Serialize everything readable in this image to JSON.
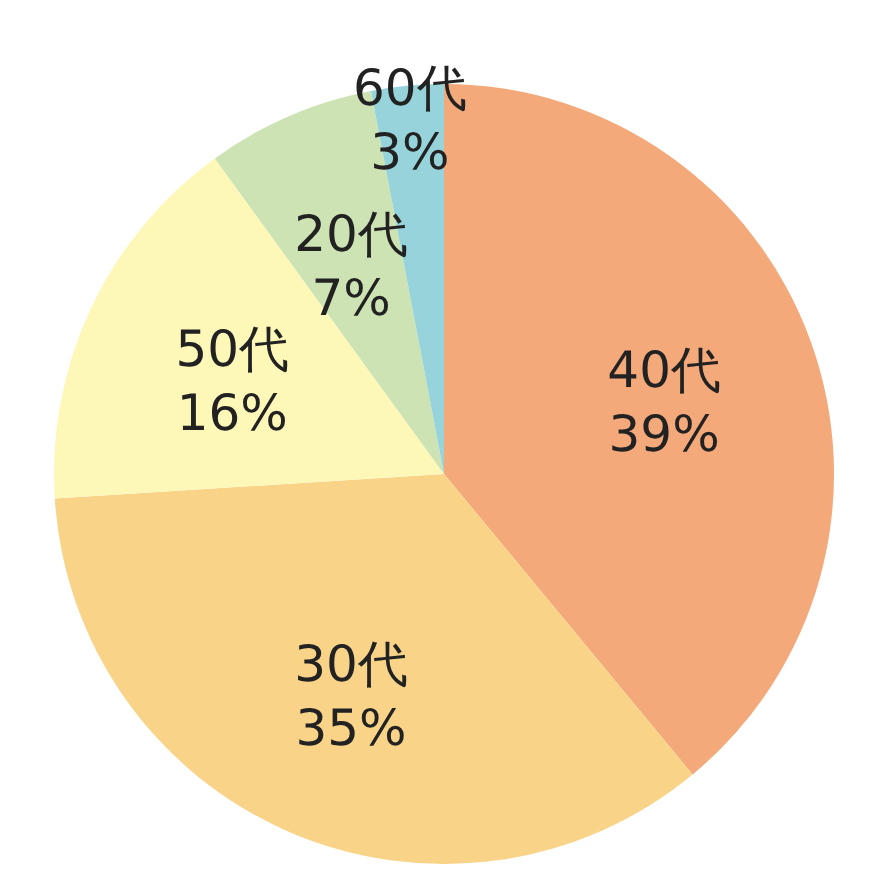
{
  "chart_data": {
    "type": "pie",
    "categories": [
      "40代",
      "30代",
      "50代",
      "20代",
      "60代"
    ],
    "values": [
      39,
      35,
      16,
      7,
      3
    ],
    "value_labels": [
      "39%",
      "35%",
      "16%",
      "7%",
      "3%"
    ],
    "colors": [
      "#f4a97a",
      "#f9d488",
      "#fdf7b8",
      "#cde3b4",
      "#96d3db"
    ]
  }
}
